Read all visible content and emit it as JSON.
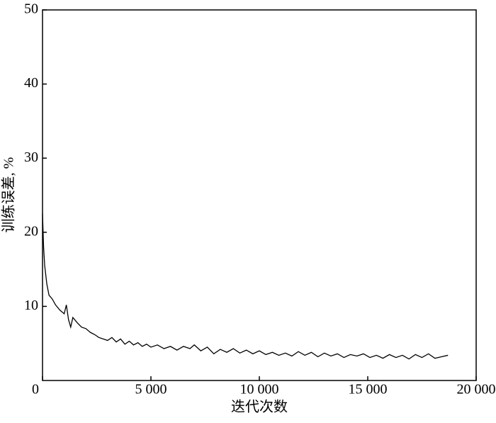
{
  "chart_data": {
    "type": "line",
    "xlabel": "迭代次数",
    "ylabel": "训练误差, %",
    "xlim": [
      0,
      20000
    ],
    "ylim": [
      0,
      50
    ],
    "xticks": [
      0,
      {
        "value": 5000,
        "label": "5 000"
      },
      {
        "value": 10000,
        "label": "10 000"
      },
      {
        "value": 15000,
        "label": "15 000"
      },
      {
        "value": 20000,
        "label": "20 000"
      }
    ],
    "yticks": [
      10,
      20,
      30,
      40,
      50
    ],
    "series": [
      {
        "color": "#000000",
        "x": [
          0,
          50,
          100,
          200,
          300,
          450,
          600,
          800,
          1000,
          1100,
          1200,
          1300,
          1400,
          1600,
          1800,
          2000,
          2200,
          2400,
          2600,
          2800,
          3000,
          3200,
          3400,
          3600,
          3800,
          4000,
          4200,
          4400,
          4600,
          4800,
          5000,
          5300,
          5600,
          5900,
          6200,
          6500,
          6800,
          7000,
          7300,
          7600,
          7900,
          8200,
          8500,
          8800,
          9100,
          9400,
          9700,
          10000,
          10300,
          10600,
          10900,
          11200,
          11500,
          11800,
          12100,
          12400,
          12700,
          13000,
          13300,
          13600,
          13900,
          14200,
          14500,
          14800,
          15100,
          15400,
          15700,
          16000,
          16300,
          16600,
          16900,
          17200,
          17500,
          17800,
          18100,
          18400,
          18700
        ],
        "values": [
          22.5,
          18,
          15.5,
          13,
          11.5,
          11,
          10.2,
          9.5,
          9,
          10.2,
          8.2,
          7.2,
          8.5,
          7.8,
          7.2,
          7.0,
          6.5,
          6.2,
          5.8,
          5.6,
          5.4,
          5.8,
          5.2,
          5.6,
          4.9,
          5.3,
          4.8,
          5.1,
          4.6,
          4.9,
          4.5,
          4.8,
          4.3,
          4.6,
          4.1,
          4.6,
          4.3,
          4.8,
          4.0,
          4.5,
          3.6,
          4.2,
          3.8,
          4.3,
          3.7,
          4.1,
          3.6,
          4.0,
          3.5,
          3.8,
          3.4,
          3.7,
          3.3,
          3.9,
          3.4,
          3.8,
          3.2,
          3.7,
          3.3,
          3.6,
          3.1,
          3.5,
          3.3,
          3.6,
          3.1,
          3.4,
          3.0,
          3.5,
          3.1,
          3.4,
          2.9,
          3.5,
          3.1,
          3.6,
          3.0,
          3.2,
          3.4
        ]
      }
    ]
  }
}
